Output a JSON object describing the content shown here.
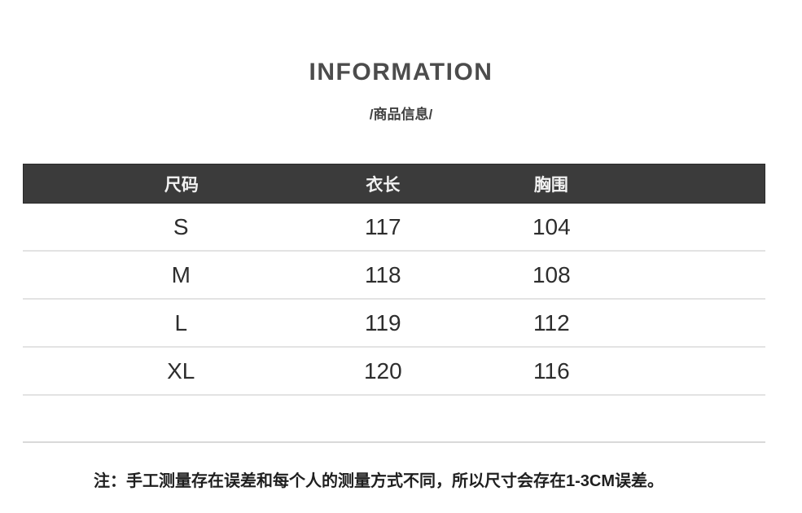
{
  "header": {
    "title": "INFORMATION",
    "subtitle": "/商品信息/"
  },
  "size_table": {
    "columns": [
      "尺码",
      "衣长",
      "胸围"
    ],
    "rows": [
      {
        "size": "S",
        "length": "117",
        "bust": "104"
      },
      {
        "size": "M",
        "length": "118",
        "bust": "108"
      },
      {
        "size": "L",
        "length": "119",
        "bust": "112"
      },
      {
        "size": "XL",
        "length": "120",
        "bust": "116"
      }
    ]
  },
  "note": "注：手工测量存在误差和每个人的测量方式不同，所以尺寸会存在1-3CM误差。",
  "colors": {
    "table_header_bg": "#3b3b3b",
    "table_header_text": "#f2f2f2",
    "body_text": "#2d2d2d",
    "divider": "#e3e3e3"
  }
}
